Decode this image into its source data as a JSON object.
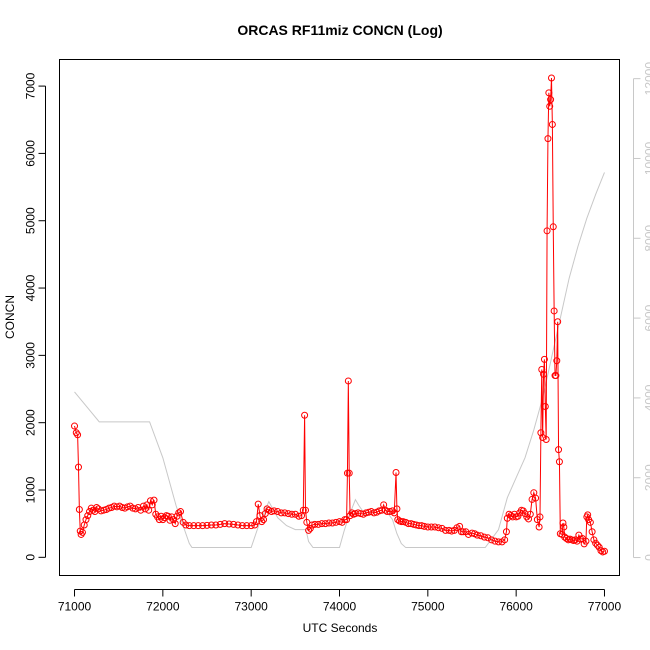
{
  "chart_data": {
    "type": "line",
    "title": "ORCAS RF11miz CONCN (Log)",
    "xlabel": "UTC Seconds",
    "ylabel": "CONCN",
    "xlim": [
      70830,
      77170
    ],
    "ylim": [
      -270,
      7395
    ],
    "y2lim": [
      -450,
      12480
    ],
    "x_ticks": [
      71000,
      72000,
      73000,
      74000,
      75000,
      76000,
      77000
    ],
    "y_ticks": [
      0,
      1000,
      2000,
      3000,
      4000,
      5000,
      6000,
      7000
    ],
    "y2_ticks": [
      0,
      2000,
      4000,
      6000,
      8000,
      10000,
      12000
    ],
    "grid": false,
    "colors": {
      "primary": "#ff0000",
      "secondary": "#c8c8c8",
      "axis": "#000000"
    },
    "series": [
      {
        "axis": "left",
        "style": "line+open-circles",
        "color": "#ff0000",
        "points": [
          [
            71000,
            1950
          ],
          [
            71020,
            1850
          ],
          [
            71035,
            1820
          ],
          [
            71045,
            1340
          ],
          [
            71055,
            710
          ],
          [
            71065,
            390
          ],
          [
            71075,
            340
          ],
          [
            71090,
            370
          ],
          [
            71110,
            480
          ],
          [
            71130,
            560
          ],
          [
            71150,
            620
          ],
          [
            71170,
            680
          ],
          [
            71190,
            730
          ],
          [
            71210,
            700
          ],
          [
            71230,
            680
          ],
          [
            71250,
            740
          ],
          [
            71270,
            720
          ],
          [
            71300,
            690
          ],
          [
            71330,
            700
          ],
          [
            71360,
            710
          ],
          [
            71390,
            730
          ],
          [
            71420,
            740
          ],
          [
            71450,
            760
          ],
          [
            71480,
            750
          ],
          [
            71510,
            760
          ],
          [
            71540,
            740
          ],
          [
            71570,
            730
          ],
          [
            71600,
            750
          ],
          [
            71630,
            760
          ],
          [
            71660,
            730
          ],
          [
            71690,
            720
          ],
          [
            71720,
            740
          ],
          [
            71750,
            700
          ],
          [
            71780,
            760
          ],
          [
            71800,
            720
          ],
          [
            71820,
            780
          ],
          [
            71840,
            700
          ],
          [
            71860,
            840
          ],
          [
            71880,
            780
          ],
          [
            71900,
            850
          ],
          [
            71920,
            640
          ],
          [
            71940,
            600
          ],
          [
            71960,
            560
          ],
          [
            71980,
            610
          ],
          [
            72000,
            560
          ],
          [
            72020,
            590
          ],
          [
            72040,
            620
          ],
          [
            72060,
            610
          ],
          [
            72080,
            550
          ],
          [
            72100,
            600
          ],
          [
            72120,
            560
          ],
          [
            72140,
            500
          ],
          [
            72160,
            610
          ],
          [
            72180,
            660
          ],
          [
            72200,
            680
          ],
          [
            72230,
            520
          ],
          [
            72260,
            480
          ],
          [
            72300,
            470
          ],
          [
            72350,
            470
          ],
          [
            72400,
            470
          ],
          [
            72450,
            470
          ],
          [
            72500,
            475
          ],
          [
            72550,
            480
          ],
          [
            72600,
            480
          ],
          [
            72650,
            490
          ],
          [
            72700,
            500
          ],
          [
            72750,
            495
          ],
          [
            72800,
            490
          ],
          [
            72850,
            480
          ],
          [
            72900,
            470
          ],
          [
            72950,
            470
          ],
          [
            73000,
            470
          ],
          [
            73040,
            480
          ],
          [
            73060,
            530
          ],
          [
            73080,
            790
          ],
          [
            73100,
            620
          ],
          [
            73120,
            530
          ],
          [
            73140,
            560
          ],
          [
            73160,
            650
          ],
          [
            73180,
            720
          ],
          [
            73200,
            700
          ],
          [
            73230,
            680
          ],
          [
            73260,
            690
          ],
          [
            73300,
            680
          ],
          [
            73340,
            660
          ],
          [
            73380,
            660
          ],
          [
            73420,
            650
          ],
          [
            73460,
            640
          ],
          [
            73500,
            640
          ],
          [
            73540,
            610
          ],
          [
            73570,
            620
          ],
          [
            73590,
            700
          ],
          [
            73605,
            2110
          ],
          [
            73615,
            700
          ],
          [
            73630,
            520
          ],
          [
            73650,
            400
          ],
          [
            73670,
            430
          ],
          [
            73690,
            480
          ],
          [
            73720,
            490
          ],
          [
            73760,
            490
          ],
          [
            73800,
            500
          ],
          [
            73840,
            500
          ],
          [
            73880,
            510
          ],
          [
            73920,
            510
          ],
          [
            73960,
            520
          ],
          [
            74000,
            530
          ],
          [
            74030,
            520
          ],
          [
            74060,
            560
          ],
          [
            74080,
            560
          ],
          [
            74090,
            1250
          ],
          [
            74100,
            2620
          ],
          [
            74110,
            1250
          ],
          [
            74120,
            620
          ],
          [
            74140,
            660
          ],
          [
            74160,
            640
          ],
          [
            74180,
            650
          ],
          [
            74210,
            660
          ],
          [
            74240,
            650
          ],
          [
            74270,
            640
          ],
          [
            74300,
            660
          ],
          [
            74330,
            670
          ],
          [
            74360,
            680
          ],
          [
            74390,
            660
          ],
          [
            74420,
            670
          ],
          [
            74450,
            690
          ],
          [
            74480,
            700
          ],
          [
            74500,
            780
          ],
          [
            74520,
            700
          ],
          [
            74540,
            680
          ],
          [
            74570,
            680
          ],
          [
            74600,
            690
          ],
          [
            74620,
            660
          ],
          [
            74640,
            1260
          ],
          [
            74650,
            720
          ],
          [
            74660,
            560
          ],
          [
            74680,
            540
          ],
          [
            74700,
            530
          ],
          [
            74720,
            530
          ],
          [
            74750,
            520
          ],
          [
            74780,
            500
          ],
          [
            74810,
            500
          ],
          [
            74840,
            490
          ],
          [
            74870,
            480
          ],
          [
            74900,
            470
          ],
          [
            74930,
            470
          ],
          [
            74960,
            460
          ],
          [
            75000,
            450
          ],
          [
            75040,
            450
          ],
          [
            75080,
            450
          ],
          [
            75120,
            440
          ],
          [
            75160,
            430
          ],
          [
            75200,
            400
          ],
          [
            75240,
            400
          ],
          [
            75270,
            390
          ],
          [
            75300,
            400
          ],
          [
            75330,
            440
          ],
          [
            75360,
            460
          ],
          [
            75380,
            380
          ],
          [
            75400,
            380
          ],
          [
            75430,
            380
          ],
          [
            75460,
            340
          ],
          [
            75500,
            360
          ],
          [
            75530,
            350
          ],
          [
            75560,
            330
          ],
          [
            75600,
            320
          ],
          [
            75640,
            300
          ],
          [
            75680,
            290
          ],
          [
            75720,
            260
          ],
          [
            75760,
            240
          ],
          [
            75800,
            230
          ],
          [
            75840,
            230
          ],
          [
            75870,
            260
          ],
          [
            75890,
            380
          ],
          [
            75900,
            580
          ],
          [
            75920,
            640
          ],
          [
            75940,
            620
          ],
          [
            75960,
            600
          ],
          [
            75980,
            640
          ],
          [
            76000,
            600
          ],
          [
            76020,
            610
          ],
          [
            76040,
            660
          ],
          [
            76060,
            700
          ],
          [
            76080,
            690
          ],
          [
            76100,
            650
          ],
          [
            76120,
            600
          ],
          [
            76140,
            570
          ],
          [
            76160,
            640
          ],
          [
            76180,
            860
          ],
          [
            76200,
            960
          ],
          [
            76220,
            880
          ],
          [
            76240,
            560
          ],
          [
            76260,
            450
          ],
          [
            76270,
            600
          ],
          [
            76280,
            1850
          ],
          [
            76290,
            2790
          ],
          [
            76300,
            1780
          ],
          [
            76310,
            2720
          ],
          [
            76320,
            2940
          ],
          [
            76330,
            2240
          ],
          [
            76340,
            1750
          ],
          [
            76350,
            4850
          ],
          [
            76360,
            6220
          ],
          [
            76370,
            6900
          ],
          [
            76380,
            6700
          ],
          [
            76390,
            6800
          ],
          [
            76400,
            7120
          ],
          [
            76410,
            6430
          ],
          [
            76420,
            4910
          ],
          [
            76430,
            3660
          ],
          [
            76440,
            2700
          ],
          [
            76450,
            2700
          ],
          [
            76460,
            2920
          ],
          [
            76470,
            3500
          ],
          [
            76480,
            1600
          ],
          [
            76490,
            1420
          ],
          [
            76500,
            350
          ],
          [
            76520,
            340
          ],
          [
            76530,
            510
          ],
          [
            76540,
            450
          ],
          [
            76550,
            300
          ],
          [
            76570,
            280
          ],
          [
            76590,
            260
          ],
          [
            76610,
            270
          ],
          [
            76630,
            260
          ],
          [
            76650,
            250
          ],
          [
            76670,
            260
          ],
          [
            76690,
            240
          ],
          [
            76710,
            330
          ],
          [
            76730,
            270
          ],
          [
            76750,
            280
          ],
          [
            76770,
            200
          ],
          [
            76790,
            240
          ],
          [
            76800,
            600
          ],
          [
            76810,
            630
          ],
          [
            76820,
            560
          ],
          [
            76840,
            520
          ],
          [
            76860,
            380
          ],
          [
            76880,
            260
          ],
          [
            76900,
            210
          ],
          [
            76920,
            180
          ],
          [
            76940,
            150
          ],
          [
            76960,
            100
          ],
          [
            76980,
            80
          ],
          [
            77000,
            90
          ]
        ]
      },
      {
        "axis": "right",
        "style": "line",
        "color": "#c8c8c8",
        "points": [
          [
            71000,
            4150
          ],
          [
            71150,
            3750
          ],
          [
            71280,
            3400
          ],
          [
            71800,
            3400
          ],
          [
            71850,
            3400
          ],
          [
            72000,
            2500
          ],
          [
            72150,
            1300
          ],
          [
            72300,
            350
          ],
          [
            72330,
            250
          ],
          [
            73000,
            250
          ],
          [
            73100,
            900
          ],
          [
            73200,
            1400
          ],
          [
            73300,
            1000
          ],
          [
            73400,
            800
          ],
          [
            73500,
            700
          ],
          [
            73620,
            700
          ],
          [
            73650,
            400
          ],
          [
            73700,
            250
          ],
          [
            74000,
            250
          ],
          [
            74050,
            650
          ],
          [
            74100,
            1000
          ],
          [
            74180,
            1450
          ],
          [
            74220,
            1300
          ],
          [
            74300,
            1050
          ],
          [
            74400,
            1200
          ],
          [
            74500,
            1250
          ],
          [
            74600,
            950
          ],
          [
            74650,
            600
          ],
          [
            74700,
            350
          ],
          [
            74750,
            250
          ],
          [
            75650,
            250
          ],
          [
            75800,
            700
          ],
          [
            75900,
            1500
          ],
          [
            76000,
            2000
          ],
          [
            76100,
            2500
          ],
          [
            76200,
            3200
          ],
          [
            76300,
            4000
          ],
          [
            76400,
            5000
          ],
          [
            76500,
            6000
          ],
          [
            76600,
            7000
          ],
          [
            76700,
            7800
          ],
          [
            76800,
            8500
          ],
          [
            76900,
            9100
          ],
          [
            77000,
            9650
          ]
        ]
      }
    ]
  }
}
